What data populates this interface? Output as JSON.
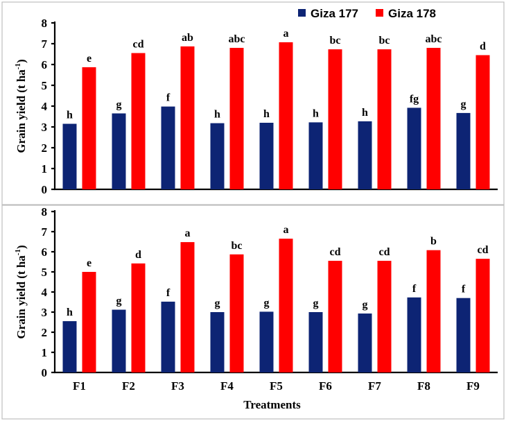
{
  "chart_data": [
    {
      "type": "bar",
      "ylabel": "Grain yield (t ha-1)",
      "ylabel_parts": {
        "main": "Grain yield (t ha",
        "sup": "-1",
        "close": ")"
      },
      "ylim": [
        0,
        8
      ],
      "yticks": [
        "0",
        "1",
        "2",
        "3",
        "4",
        "5",
        "6",
        "7",
        "8"
      ],
      "categories": [
        "F1",
        "F2",
        "F3",
        "F4",
        "F5",
        "F6",
        "F7",
        "F8",
        "F9"
      ],
      "legend": "top-right",
      "series": [
        {
          "name": "Giza 177",
          "color": "#0d2474",
          "values": [
            3.15,
            3.65,
            3.98,
            3.18,
            3.2,
            3.22,
            3.27,
            3.92,
            3.67
          ],
          "labels": [
            "h",
            "g",
            "f",
            "h",
            "h",
            "h",
            "h",
            "fg",
            "g"
          ]
        },
        {
          "name": "Giza 178",
          "color": "#ff0000",
          "values": [
            5.87,
            6.55,
            6.87,
            6.8,
            7.07,
            6.73,
            6.73,
            6.8,
            6.45
          ],
          "labels": [
            "e",
            "cd",
            "ab",
            "abc",
            "a",
            "bc",
            "bc",
            "abc",
            "d"
          ]
        }
      ]
    },
    {
      "type": "bar",
      "ylabel": "Grain yield (t ha-1)",
      "ylabel_parts": {
        "main": "Grain yield (t ha",
        "sup": "-1",
        "close": ")"
      },
      "xlabel": "Treatments",
      "ylim": [
        0,
        8
      ],
      "yticks": [
        "0",
        "1",
        "2",
        "3",
        "4",
        "5",
        "6",
        "7",
        "8"
      ],
      "categories": [
        "F1",
        "F2",
        "F3",
        "F4",
        "F5",
        "F6",
        "F7",
        "F8",
        "F9"
      ],
      "series": [
        {
          "name": "Giza 177",
          "color": "#0d2474",
          "values": [
            2.55,
            3.12,
            3.52,
            3.0,
            3.02,
            3.0,
            2.93,
            3.73,
            3.7
          ],
          "labels": [
            "h",
            "g",
            "f",
            "g",
            "g",
            "g",
            "g",
            "f",
            "f"
          ]
        },
        {
          "name": "Giza 178",
          "color": "#ff0000",
          "values": [
            5.0,
            5.42,
            6.48,
            5.87,
            6.65,
            5.55,
            5.55,
            6.08,
            5.65
          ],
          "labels": [
            "e",
            "d",
            "a",
            "bc",
            "a",
            "cd",
            "cd",
            "b",
            "cd"
          ]
        }
      ]
    }
  ]
}
